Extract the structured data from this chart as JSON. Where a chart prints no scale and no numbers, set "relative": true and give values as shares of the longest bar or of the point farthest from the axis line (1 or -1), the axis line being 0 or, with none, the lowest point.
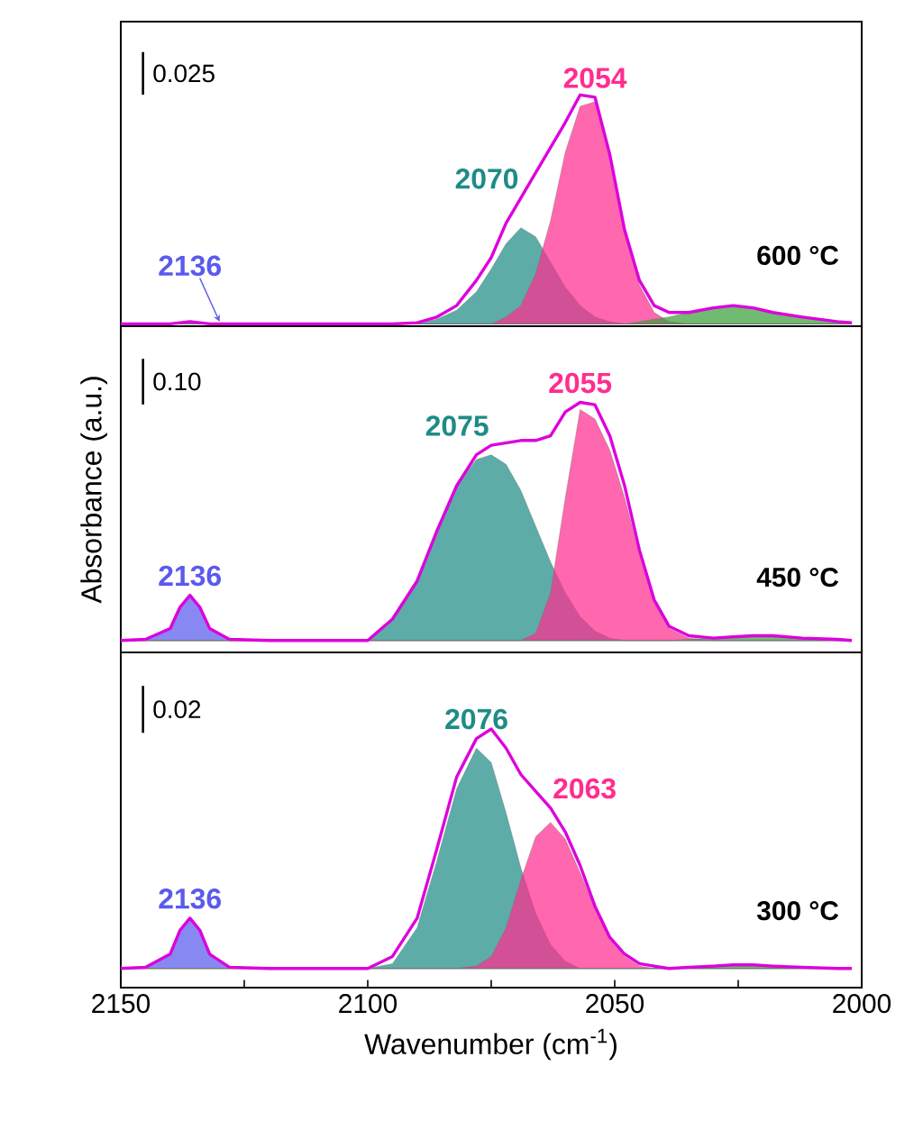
{
  "chart_data": [
    {
      "type": "area",
      "relative": true,
      "title": "600 °C",
      "annotations": [
        "0.025"
      ],
      "xlim": [
        2150,
        2000
      ],
      "tick_labels": false,
      "marker": "none",
      "x": [
        2150,
        2145,
        2140,
        2138,
        2136,
        2134,
        2132,
        2128,
        2120,
        2110,
        2100,
        2095,
        2090,
        2086,
        2082,
        2078,
        2075,
        2072,
        2069,
        2066,
        2063,
        2060,
        2057,
        2054,
        2051,
        2048,
        2045,
        2042,
        2039,
        2035,
        2030,
        2026,
        2022,
        2018,
        2012,
        2005,
        2002
      ],
      "series": [
        {
          "name": "2136",
          "color": "#5a5aee",
          "values": [
            0,
            0,
            0,
            0.005,
            0.01,
            0.005,
            0,
            0,
            0,
            0,
            0,
            0,
            0,
            0,
            0,
            0,
            0,
            0,
            0,
            0,
            0,
            0,
            0,
            0,
            0,
            0,
            0,
            0,
            0,
            0,
            0,
            0,
            0,
            0,
            0,
            0,
            0
          ]
        },
        {
          "name": "2070",
          "color": "#1e8c86",
          "values": [
            0,
            0,
            0,
            0,
            0,
            0,
            0,
            0,
            0,
            0,
            0,
            0,
            0,
            0.02,
            0.06,
            0.14,
            0.24,
            0.35,
            0.42,
            0.38,
            0.27,
            0.16,
            0.08,
            0.03,
            0.01,
            0,
            0,
            0,
            0,
            0,
            0,
            0,
            0,
            0,
            0,
            0,
            0
          ]
        },
        {
          "name": "2054",
          "color": "#ff2d8f",
          "values": [
            0,
            0,
            0,
            0,
            0,
            0,
            0,
            0,
            0,
            0,
            0,
            0,
            0,
            0,
            0,
            0,
            0,
            0.03,
            0.08,
            0.22,
            0.45,
            0.75,
            0.95,
            0.97,
            0.72,
            0.4,
            0.17,
            0.05,
            0.01,
            0,
            0,
            0,
            0,
            0,
            0,
            0,
            0
          ]
        },
        {
          "color": "#3aa03a",
          "values": [
            0,
            0,
            0,
            0,
            0,
            0,
            0,
            0,
            0,
            0,
            0,
            0,
            0,
            0,
            0,
            0,
            0,
            0,
            0,
            0,
            0,
            0,
            0,
            0,
            0,
            0,
            0.01,
            0.02,
            0.03,
            0.05,
            0.07,
            0.08,
            0.07,
            0.05,
            0.03,
            0.01,
            0.005
          ]
        },
        {
          "type": "line",
          "color": "#dd00dd",
          "values": [
            0,
            0,
            0,
            0.005,
            0.01,
            0.005,
            0,
            0,
            0,
            0,
            0,
            0,
            0.005,
            0.03,
            0.08,
            0.19,
            0.29,
            0.44,
            0.55,
            0.66,
            0.77,
            0.88,
            1.0,
            0.99,
            0.74,
            0.41,
            0.19,
            0.08,
            0.05,
            0.05,
            0.07,
            0.08,
            0.07,
            0.05,
            0.03,
            0.01,
            0.005
          ]
        }
      ]
    },
    {
      "type": "area",
      "relative": true,
      "title": "450 °C",
      "ylabel": "Absorbance (a.u.)",
      "annotations": [
        "0.10"
      ],
      "xlim": [
        2150,
        2000
      ],
      "tick_labels": false,
      "marker": "none",
      "x": [
        2150,
        2145,
        2140,
        2138,
        2136,
        2134,
        2132,
        2128,
        2120,
        2110,
        2100,
        2095,
        2090,
        2086,
        2082,
        2078,
        2075,
        2072,
        2069,
        2066,
        2063,
        2060,
        2057,
        2054,
        2051,
        2048,
        2045,
        2042,
        2039,
        2035,
        2030,
        2026,
        2022,
        2018,
        2012,
        2005,
        2002
      ],
      "series": [
        {
          "name": "2136",
          "color": "#5a5aee",
          "values": [
            0,
            0.005,
            0.05,
            0.14,
            0.19,
            0.14,
            0.05,
            0.005,
            0,
            0,
            0,
            0,
            0,
            0,
            0,
            0,
            0,
            0,
            0,
            0,
            0,
            0,
            0,
            0,
            0,
            0,
            0,
            0,
            0,
            0,
            0,
            0,
            0,
            0,
            0,
            0,
            0
          ]
        },
        {
          "name": "2075",
          "color": "#1e8c86",
          "values": [
            0,
            0,
            0,
            0,
            0,
            0,
            0,
            0,
            0,
            0,
            0,
            0.09,
            0.25,
            0.46,
            0.65,
            0.76,
            0.78,
            0.74,
            0.63,
            0.48,
            0.33,
            0.2,
            0.1,
            0.04,
            0.01,
            0,
            0,
            0,
            0,
            0,
            0,
            0,
            0,
            0,
            0,
            0,
            0
          ]
        },
        {
          "name": "2055",
          "color": "#ff2d8f",
          "values": [
            0,
            0,
            0,
            0,
            0,
            0,
            0,
            0,
            0,
            0,
            0,
            0,
            0,
            0,
            0,
            0,
            0,
            0,
            0,
            0.03,
            0.2,
            0.6,
            0.97,
            0.93,
            0.8,
            0.6,
            0.36,
            0.16,
            0.05,
            0.01,
            0,
            0,
            0,
            0,
            0,
            0,
            0
          ]
        },
        {
          "color": "#3aa03a",
          "values": [
            0,
            0,
            0,
            0,
            0,
            0,
            0,
            0,
            0,
            0,
            0,
            0,
            0,
            0,
            0,
            0,
            0,
            0,
            0,
            0,
            0,
            0,
            0,
            0,
            0,
            0,
            0,
            0,
            0,
            0.005,
            0.01,
            0.015,
            0.02,
            0.02,
            0.01,
            0.005,
            0
          ]
        },
        {
          "type": "line",
          "color": "#dd00dd",
          "values": [
            0,
            0.005,
            0.05,
            0.14,
            0.19,
            0.14,
            0.05,
            0.005,
            0,
            0,
            0,
            0.09,
            0.25,
            0.46,
            0.65,
            0.78,
            0.82,
            0.83,
            0.84,
            0.84,
            0.86,
            0.96,
            1.0,
            0.99,
            0.86,
            0.65,
            0.38,
            0.17,
            0.06,
            0.02,
            0.01,
            0.015,
            0.02,
            0.02,
            0.01,
            0.005,
            0
          ]
        }
      ]
    },
    {
      "type": "area",
      "relative": true,
      "title": "300 °C",
      "xlabel": "Wavenumber (cm$^{-1}$)",
      "annotations": [
        "0.02"
      ],
      "xlim": [
        2150,
        2000
      ],
      "tick_labels": "x",
      "marker": "none",
      "xticks": [
        2150,
        {
          "value": 2125,
          "label": null
        },
        2100,
        {
          "value": 2075,
          "label": null
        },
        2050,
        {
          "value": 2025,
          "label": null
        },
        2000
      ],
      "x": [
        2150,
        2145,
        2140,
        2138,
        2136,
        2134,
        2132,
        2128,
        2120,
        2110,
        2100,
        2095,
        2090,
        2086,
        2082,
        2078,
        2075,
        2072,
        2069,
        2066,
        2063,
        2060,
        2057,
        2054,
        2051,
        2048,
        2045,
        2042,
        2039,
        2035,
        2030,
        2026,
        2022,
        2018,
        2012,
        2005,
        2002
      ],
      "series": [
        {
          "name": "2136",
          "color": "#5a5aee",
          "values": [
            0,
            0.005,
            0.06,
            0.16,
            0.21,
            0.16,
            0.06,
            0.005,
            0,
            0,
            0,
            0,
            0,
            0,
            0,
            0,
            0,
            0,
            0,
            0,
            0,
            0,
            0,
            0,
            0,
            0,
            0,
            0,
            0,
            0,
            0,
            0,
            0,
            0,
            0,
            0,
            0
          ]
        },
        {
          "name": "2076",
          "color": "#1e8c86",
          "values": [
            0,
            0,
            0,
            0,
            0,
            0,
            0,
            0,
            0,
            0,
            0,
            0.02,
            0.17,
            0.45,
            0.75,
            0.92,
            0.86,
            0.65,
            0.42,
            0.23,
            0.1,
            0.03,
            0,
            0,
            0,
            0,
            0,
            0,
            0,
            0,
            0,
            0,
            0,
            0,
            0,
            0,
            0
          ]
        },
        {
          "name": "2063",
          "color": "#ff2d8f",
          "values": [
            0,
            0,
            0,
            0,
            0,
            0,
            0,
            0,
            0,
            0,
            0,
            0,
            0,
            0,
            0,
            0.01,
            0.05,
            0.17,
            0.37,
            0.55,
            0.61,
            0.54,
            0.4,
            0.25,
            0.12,
            0.05,
            0.01,
            0,
            0,
            0,
            0,
            0,
            0,
            0,
            0,
            0,
            0
          ]
        },
        {
          "color": "#3aa03a",
          "values": [
            0,
            0,
            0,
            0,
            0,
            0,
            0,
            0,
            0,
            0,
            0,
            0,
            0,
            0,
            0,
            0,
            0,
            0,
            0,
            0,
            0,
            0,
            0,
            0,
            0,
            0,
            0,
            0,
            0,
            0.005,
            0.01,
            0.015,
            0.015,
            0.01,
            0.005,
            0,
            0
          ]
        },
        {
          "type": "line",
          "color": "#dd00dd",
          "values": [
            0,
            0.005,
            0.06,
            0.16,
            0.21,
            0.16,
            0.06,
            0.005,
            0,
            0,
            0,
            0.05,
            0.21,
            0.5,
            0.8,
            0.96,
            1.0,
            0.92,
            0.81,
            0.74,
            0.67,
            0.57,
            0.43,
            0.26,
            0.13,
            0.06,
            0.02,
            0.01,
            0,
            0.005,
            0.01,
            0.015,
            0.015,
            0.01,
            0.005,
            0,
            0
          ]
        }
      ]
    }
  ]
}
